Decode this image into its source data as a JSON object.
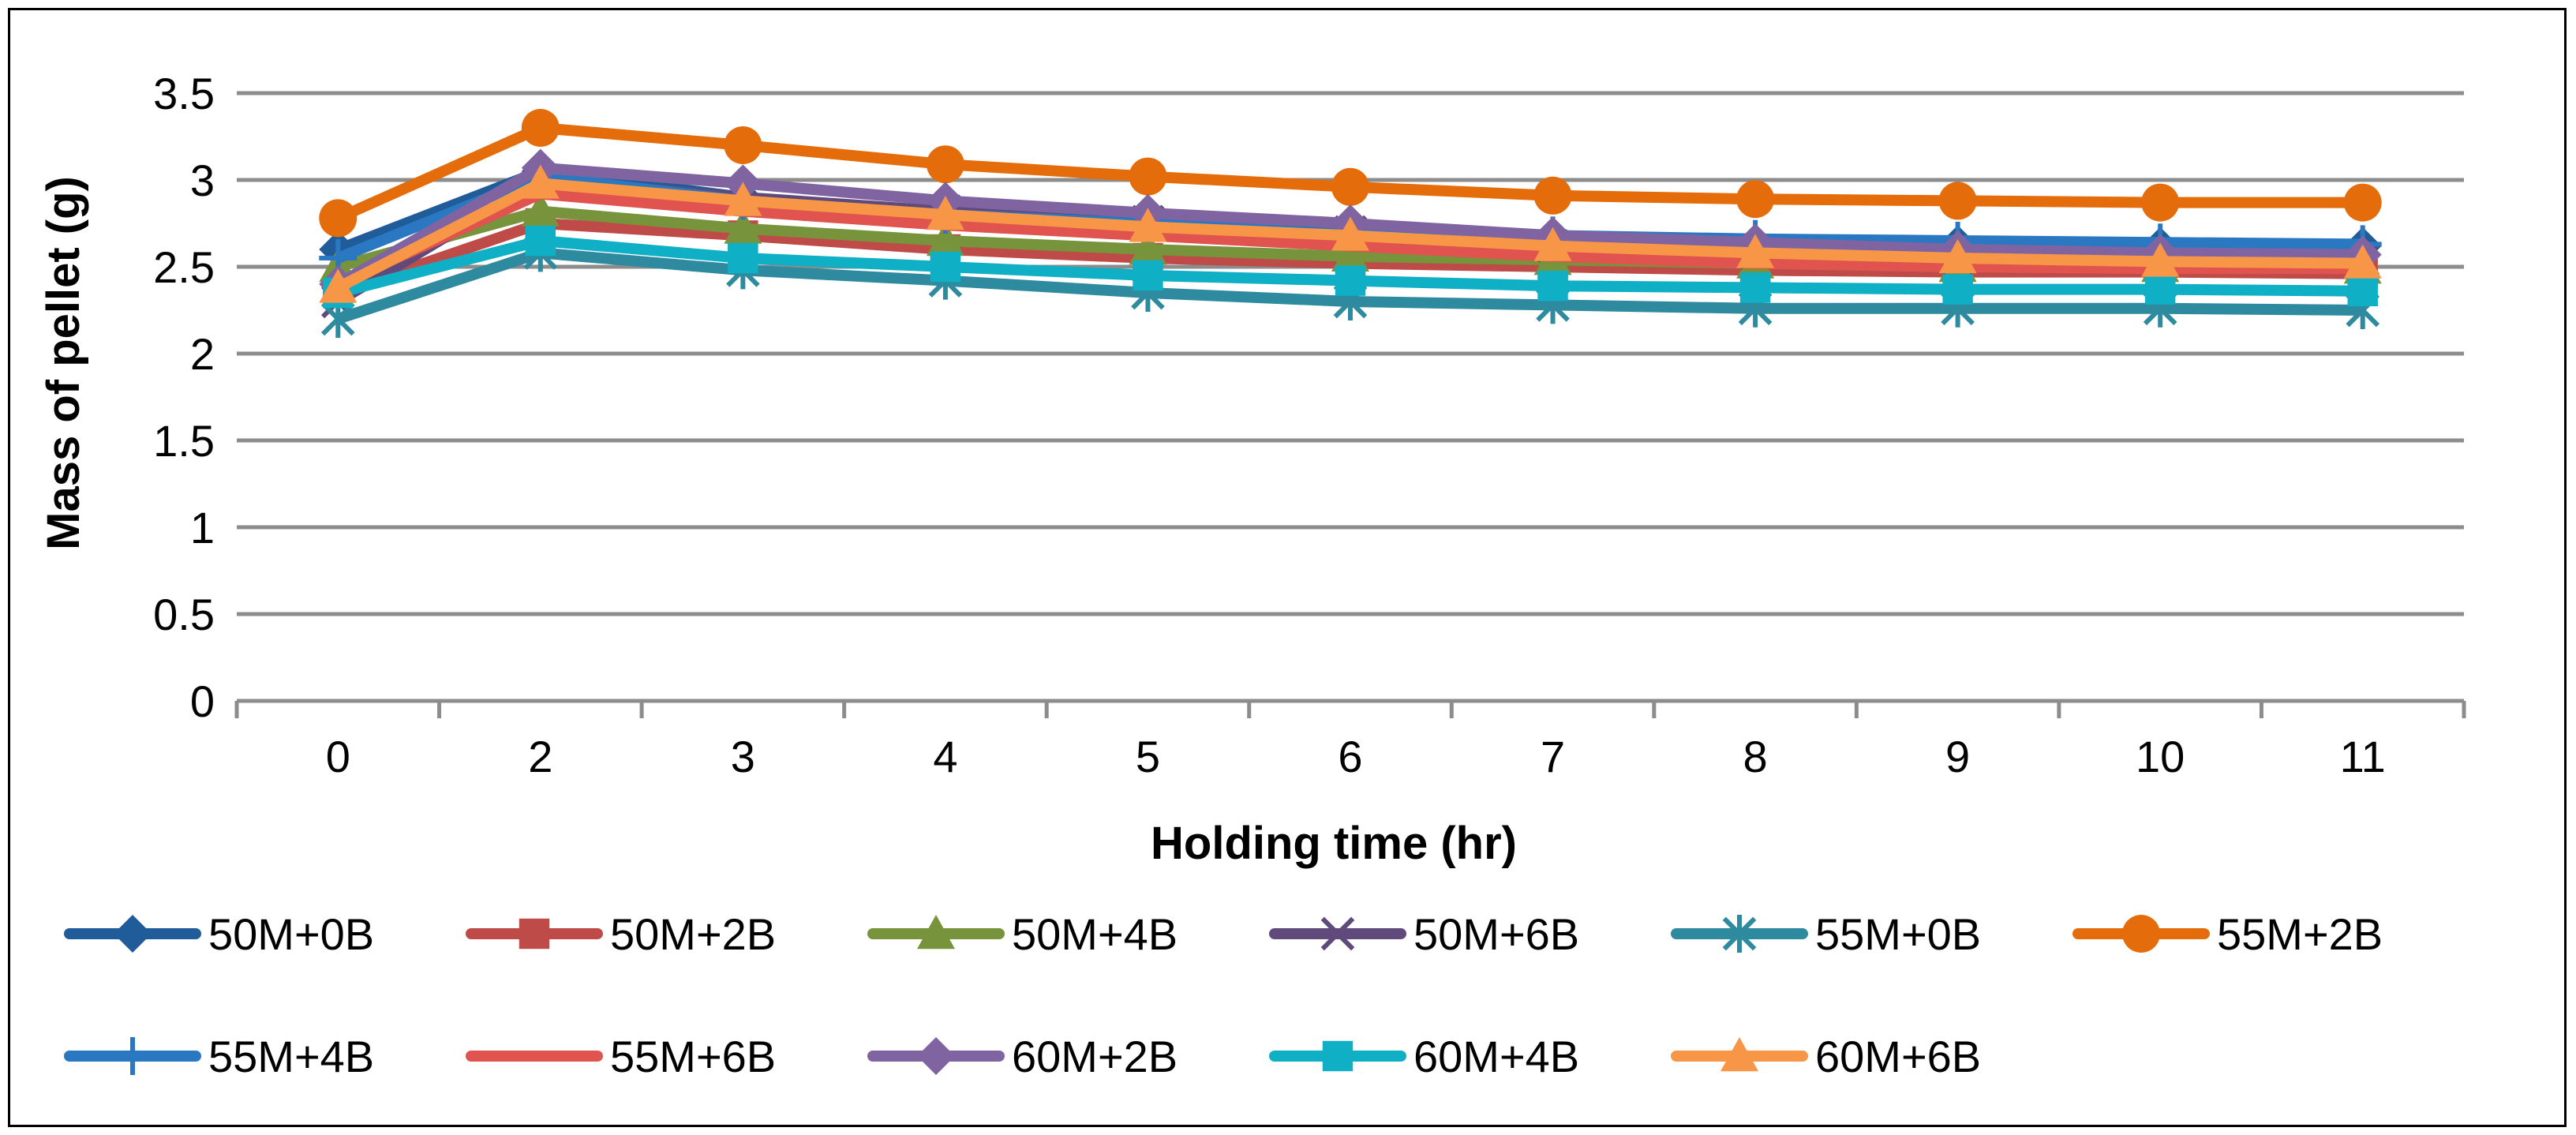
{
  "chart_data": {
    "type": "line",
    "title": "",
    "xlabel": "Holding time (hr)",
    "ylabel": "Mass of pellet (g)",
    "categories": [
      "0",
      "2",
      "3",
      "4",
      "5",
      "6",
      "7",
      "8",
      "9",
      "10",
      "11"
    ],
    "ylim": [
      0,
      3.5
    ],
    "yticks": [
      "0",
      "0.5",
      "1",
      "1.5",
      "2",
      "2.5",
      "3",
      "3.5"
    ],
    "grid": true,
    "legend_position": "bottom",
    "series": [
      {
        "name": "50M+0B",
        "color": "#1f5c99",
        "marker": "diamond",
        "values": [
          2.6,
          3.05,
          2.9,
          2.8,
          2.72,
          2.68,
          2.65,
          2.64,
          2.63,
          2.62,
          2.62
        ]
      },
      {
        "name": "50M+2B",
        "color": "#be4b48",
        "marker": "square",
        "values": [
          2.35,
          2.75,
          2.68,
          2.6,
          2.55,
          2.52,
          2.5,
          2.48,
          2.47,
          2.47,
          2.46
        ]
      },
      {
        "name": "50M+4B",
        "color": "#77933c",
        "marker": "triangle",
        "values": [
          2.5,
          2.82,
          2.72,
          2.65,
          2.6,
          2.56,
          2.54,
          2.52,
          2.5,
          2.5,
          2.49
        ]
      },
      {
        "name": "50M+6B",
        "color": "#604a7b",
        "marker": "x",
        "values": [
          2.3,
          3.0,
          2.9,
          2.82,
          2.76,
          2.7,
          2.62,
          2.58,
          2.55,
          2.55,
          2.54
        ]
      },
      {
        "name": "55M+0B",
        "color": "#2e8a9e",
        "marker": "star",
        "values": [
          2.2,
          2.58,
          2.48,
          2.42,
          2.35,
          2.3,
          2.28,
          2.26,
          2.26,
          2.26,
          2.25
        ]
      },
      {
        "name": "55M+2B",
        "color": "#e46c0a",
        "marker": "circle",
        "values": [
          2.78,
          3.3,
          3.2,
          3.09,
          3.02,
          2.96,
          2.91,
          2.89,
          2.88,
          2.87,
          2.87
        ]
      },
      {
        "name": "55M+4B",
        "color": "#2a78c2",
        "marker": "plus",
        "values": [
          2.55,
          3.02,
          2.88,
          2.8,
          2.75,
          2.7,
          2.68,
          2.66,
          2.65,
          2.64,
          2.63
        ]
      },
      {
        "name": "55M+6B",
        "color": "#e0534f",
        "marker": "none",
        "values": [
          2.4,
          2.92,
          2.82,
          2.74,
          2.68,
          2.62,
          2.56,
          2.52,
          2.5,
          2.49,
          2.49
        ]
      },
      {
        "name": "60M+2B",
        "color": "#8064a2",
        "marker": "diamond",
        "values": [
          2.4,
          3.07,
          2.98,
          2.88,
          2.81,
          2.75,
          2.68,
          2.64,
          2.6,
          2.58,
          2.57
        ]
      },
      {
        "name": "60M+4B",
        "color": "#0fafc6",
        "marker": "square",
        "values": [
          2.35,
          2.65,
          2.55,
          2.5,
          2.45,
          2.42,
          2.39,
          2.38,
          2.37,
          2.37,
          2.36
        ]
      },
      {
        "name": "60M+6B",
        "color": "#f79646",
        "marker": "triangle",
        "values": [
          2.38,
          2.98,
          2.88,
          2.8,
          2.73,
          2.68,
          2.62,
          2.58,
          2.55,
          2.53,
          2.52
        ]
      }
    ]
  }
}
